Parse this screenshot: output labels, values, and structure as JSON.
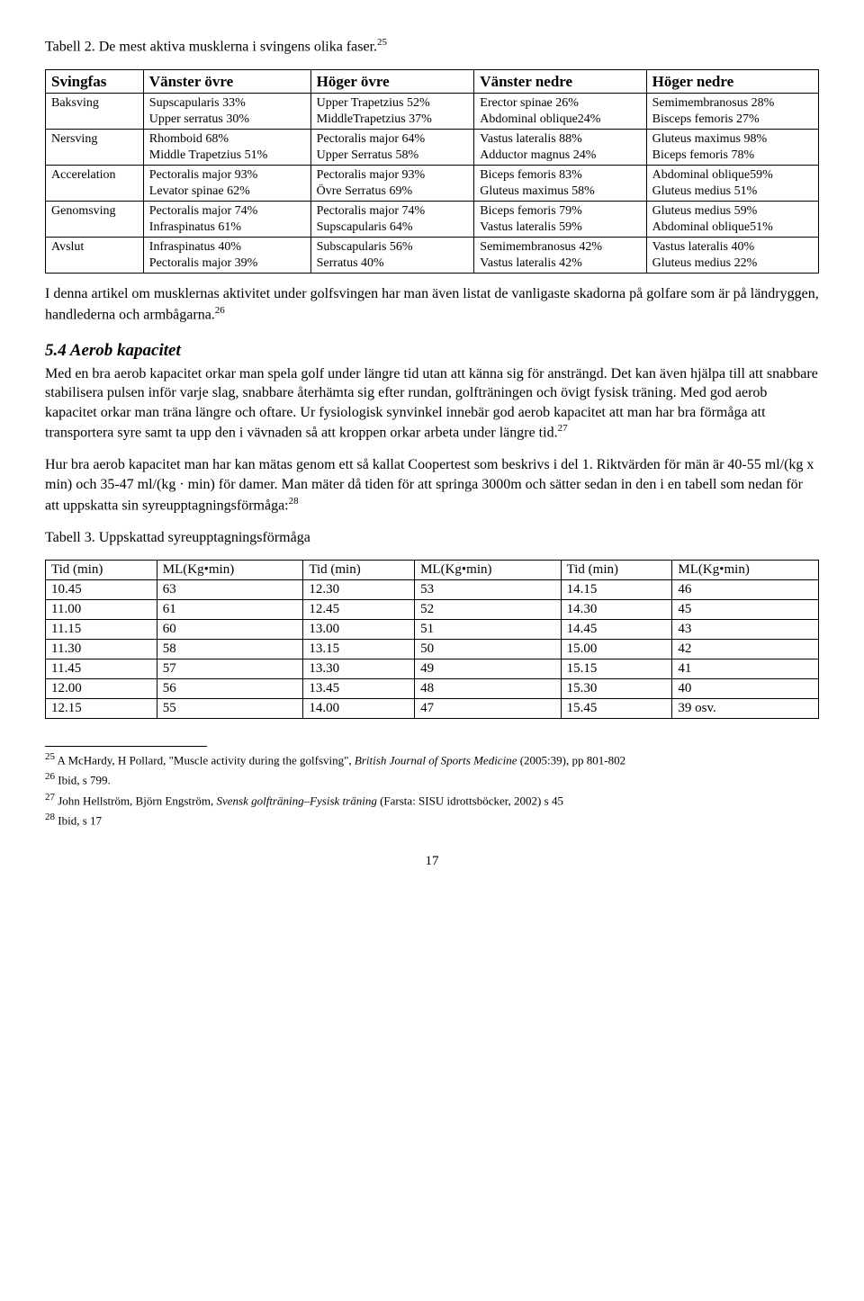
{
  "table2_caption": "Tabell 2. De mest aktiva musklerna i svingens olika faser.",
  "table2_caption_sup": "25",
  "muscle_table": {
    "headers": [
      "Svingfas",
      "Vänster övre",
      "Höger övre",
      "Vänster nedre",
      "Höger nedre"
    ],
    "rows": [
      {
        "phase": "Baksving",
        "vo": "Supscapularis 33%\nUpper serratus 30%",
        "ho": "Upper Trapetzius 52%\nMiddleTrapetzius 37%",
        "vn": "Erector spinae 26%\nAbdominal oblique24%",
        "hn": "Semimembranosus 28%\nBisceps femoris 27%"
      },
      {
        "phase": "Nersving",
        "vo": "Rhomboid 68%\nMiddle Trapetzius 51%",
        "ho": "Pectoralis major 64%\nUpper Serratus 58%",
        "vn": "Vastus lateralis 88%\nAdductor magnus 24%",
        "hn": "Gluteus maximus 98%\nBiceps femoris 78%"
      },
      {
        "phase": "Accerelation",
        "vo": "Pectoralis major 93%\nLevator spinae 62%",
        "ho": "Pectoralis major 93%\nÖvre Serratus 69%",
        "vn": "Biceps femoris 83%\nGluteus maximus 58%",
        "hn": "Abdominal oblique59%\nGluteus medius 51%"
      },
      {
        "phase": "Genomsving",
        "vo": "Pectoralis major 74%\nInfraspinatus 61%",
        "ho": "Pectoralis major 74%\nSupscapularis 64%",
        "vn": "Biceps femoris 79%\nVastus lateralis 59%",
        "hn": "Gluteus medius 59%\nAbdominal oblique51%"
      },
      {
        "phase": "Avslut",
        "vo": "Infraspinatus 40%\nPectoralis major 39%",
        "ho": "Subscapularis 56%\nSerratus 40%",
        "vn": "Semimembranosus 42%\nVastus lateralis 42%",
        "hn": "Vastus lateralis 40%\nGluteus medius 22%"
      }
    ]
  },
  "para1a": "I denna artikel om musklernas aktivitet under golfsvingen har man även listat de vanligaste skadorna på golfare som är på ländryggen, handlederna och armbågarna.",
  "para1_sup": "26",
  "heading": "5.4 Aerob kapacitet",
  "para2a": "Med en bra aerob kapacitet orkar man spela golf under längre tid utan att känna sig för ansträngd. Det kan även hjälpa till att snabbare stabilisera pulsen inför varje slag, snabbare återhämta sig efter rundan, golfträningen och övigt fysisk träning. Med god aerob kapacitet orkar man träna längre och oftare. Ur fysiologisk synvinkel innebär god aerob kapacitet att man har bra förmåga att transportera syre samt ta upp den i vävnaden så att kroppen orkar arbeta under längre tid.",
  "para2_sup": "27",
  "para3a": "Hur bra aerob kapacitet man har kan mätas genom ett så kallat Coopertest som beskrivs i del 1. Riktvärden för män är 40-55 ml/(kg x min) och 35-47 ml/(kg · min) för damer. Man mäter då tiden för att springa 3000m och sätter sedan in den i en tabell som nedan för att uppskatta sin syreupptagningsförmåga:",
  "para3_sup": "28",
  "table3_caption": "Tabell 3. Uppskattad syreupptagningsförmåga",
  "t3": {
    "headers": [
      "Tid (min)",
      "ML(Kg•min)",
      "Tid (min)",
      "ML(Kg•min)",
      "Tid (min)",
      "ML(Kg•min)"
    ],
    "rows": [
      [
        "10.45",
        "63",
        "12.30",
        "53",
        "14.15",
        "46"
      ],
      [
        "11.00",
        "61",
        "12.45",
        "52",
        "14.30",
        "45"
      ],
      [
        "11.15",
        "60",
        "13.00",
        "51",
        "14.45",
        "43"
      ],
      [
        "11.30",
        "58",
        "13.15",
        "50",
        "15.00",
        "42"
      ],
      [
        "11.45",
        "57",
        "13.30",
        "49",
        "15.15",
        "41"
      ],
      [
        "12.00",
        "56",
        "13.45",
        "48",
        "15.30",
        "40"
      ],
      [
        "12.15",
        "55",
        "14.00",
        "47",
        "15.45",
        "39 osv."
      ]
    ]
  },
  "footnotes": {
    "f25_num": "25",
    "f25a": " A McHardy, H Pollard, \"Muscle activity during the golfsving\", ",
    "f25b": "British Journal of Sports Medicine",
    "f25c": " (2005:39), pp 801-802",
    "f26_num": "26",
    "f26": " Ibid, s 799.",
    "f27_num": "27",
    "f27a": " John Hellström, Björn Engström, ",
    "f27b": "Svensk golfträning–Fysisk träning",
    "f27c": " (Farsta: SISU idrottsböcker, 2002) s 45",
    "f28_num": "28",
    "f28": " Ibid, s 17"
  },
  "page_number": "17"
}
